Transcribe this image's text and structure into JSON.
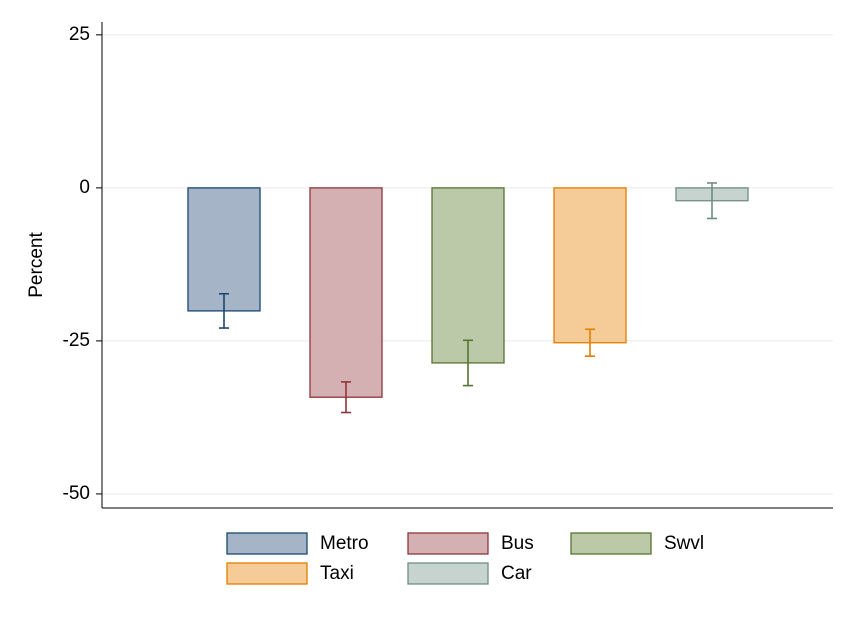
{
  "chart_data": {
    "type": "bar",
    "y_label": "Percent",
    "series": [
      {
        "name": "Metro",
        "color": "#a5b5c7",
        "edge_color": "#1a476f",
        "values": [
          -20.1
        ],
        "errors": [
          2.8
        ]
      },
      {
        "name": "Bus",
        "color": "#d4b0b3",
        "edge_color": "#90353b",
        "values": [
          -34.2
        ],
        "errors": [
          2.5
        ]
      },
      {
        "name": "Swvl",
        "color": "#bcc9a9",
        "edge_color": "#55752f",
        "values": [
          -28.6
        ],
        "errors": [
          3.7
        ]
      },
      {
        "name": "Taxi",
        "color": "#f5cb98",
        "edge_color": "#e37e00",
        "values": [
          -25.3
        ],
        "errors": [
          2.2
        ]
      },
      {
        "name": "Car",
        "color": "#c7d3ce",
        "edge_color": "#6e8e84",
        "values": [
          -2.1
        ],
        "errors": [
          2.9
        ]
      }
    ],
    "ylim": [
      -52.3,
      27.1
    ],
    "yticks": [
      25,
      0,
      -25,
      -50
    ],
    "grid": true
  }
}
